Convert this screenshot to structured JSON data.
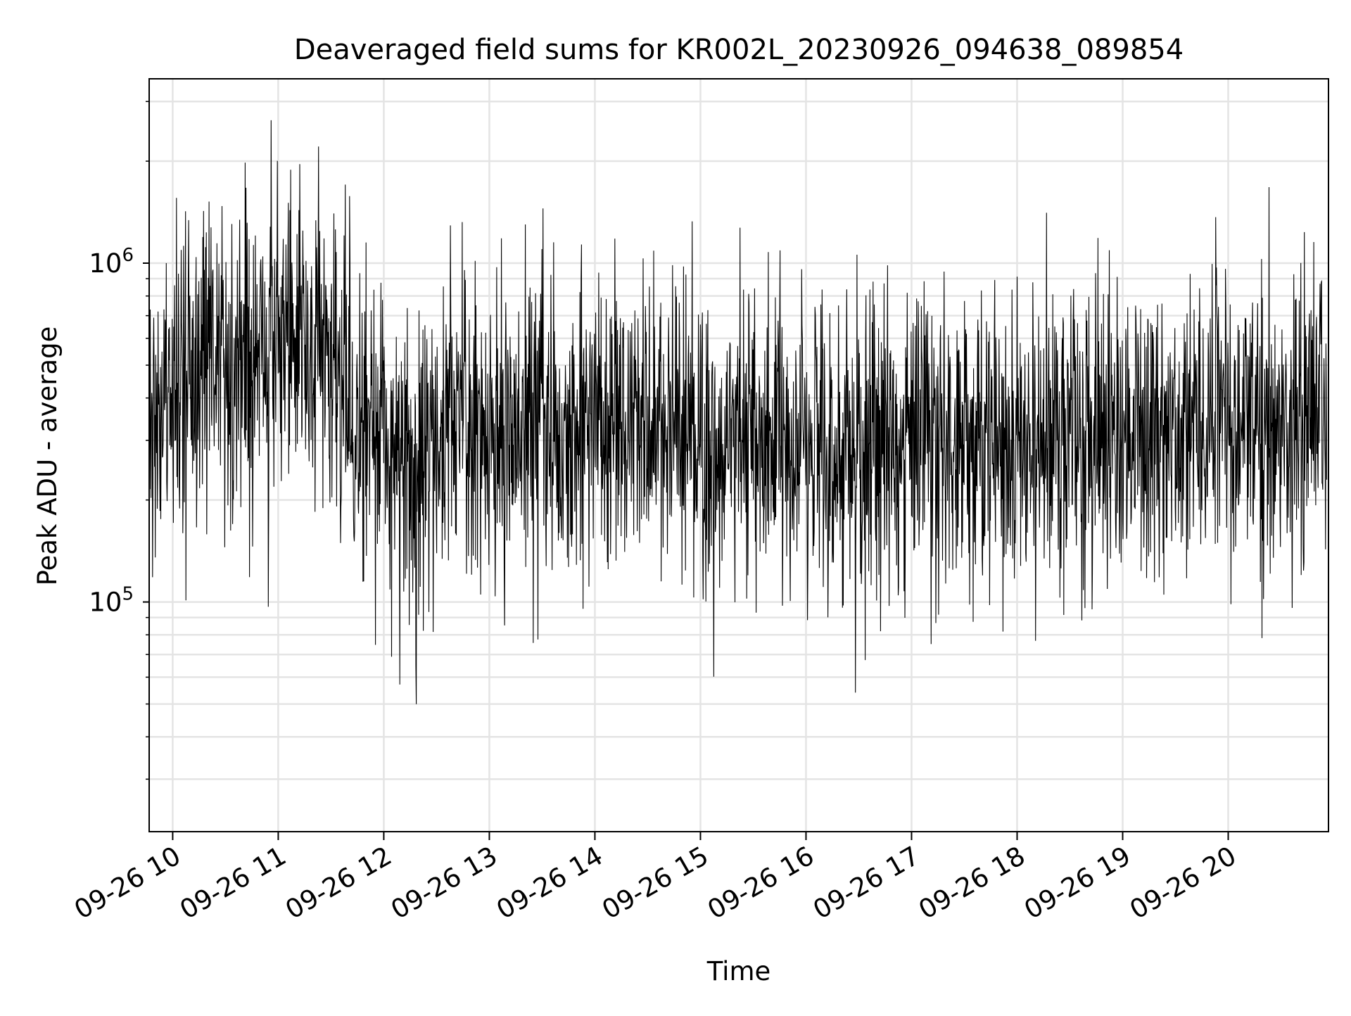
{
  "chart_data": {
    "type": "line",
    "title": "Deaveraged field sums for KR002L_20230926_094638_089854",
    "xlabel": "Time",
    "ylabel": "Peak ADU - average",
    "x_tick_labels": [
      "09-26 10",
      "09-26 11",
      "09-26 12",
      "09-26 13",
      "09-26 14",
      "09-26 15",
      "09-26 16",
      "09-26 17",
      "09-26 18",
      "09-26 19",
      "09-26 20"
    ],
    "y_tick_labels": [
      {
        "base": "10",
        "exp": "5",
        "value": 100000
      },
      {
        "base": "10",
        "exp": "6",
        "value": 1000000
      }
    ],
    "y_scale": "log",
    "ylim": [
      21000,
      3500000
    ],
    "xlim": [
      "2023-09-26 09:46:38",
      "2023-09-26 20:57:00"
    ],
    "grid": true,
    "line_color": "#000000",
    "series": [
      {
        "x": [
          "2023-09-26 09:47",
          "2023-09-26 10:05",
          "2023-09-26 10:20",
          "2023-09-26 10:40",
          "2023-09-26 11:00",
          "2023-09-26 11:20",
          "2023-09-26 11:40",
          "2023-09-26 12:00",
          "2023-09-26 12:20",
          "2023-09-26 12:40",
          "2023-09-26 13:00",
          "2023-09-26 13:20",
          "2023-09-26 13:40",
          "2023-09-26 14:00",
          "2023-09-26 14:20",
          "2023-09-26 14:40",
          "2023-09-26 15:00",
          "2023-09-26 15:20",
          "2023-09-26 15:40",
          "2023-09-26 16:00",
          "2023-09-26 16:20",
          "2023-09-26 16:40",
          "2023-09-26 17:00",
          "2023-09-26 17:20",
          "2023-09-26 17:40",
          "2023-09-26 18:00",
          "2023-09-26 18:20",
          "2023-09-26 18:40",
          "2023-09-26 19:00",
          "2023-09-26 19:20",
          "2023-09-26 19:40",
          "2023-09-26 20:00",
          "2023-09-26 20:20",
          "2023-09-26 20:40",
          "2023-09-26 20:56"
        ],
        "y": [
          300000,
          450000,
          550000,
          500000,
          600000,
          550000,
          400000,
          280000,
          220000,
          380000,
          300000,
          320000,
          350000,
          330000,
          340000,
          320000,
          300000,
          310000,
          290000,
          280000,
          270000,
          280000,
          300000,
          280000,
          270000,
          270000,
          280000,
          300000,
          290000,
          310000,
          340000,
          330000,
          310000,
          350000,
          400000
        ]
      }
    ]
  }
}
